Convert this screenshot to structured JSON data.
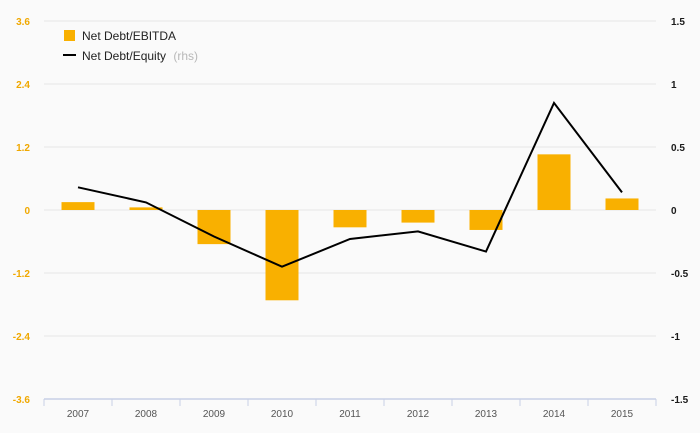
{
  "chart_data": {
    "type": "bar",
    "categories": [
      "2007",
      "2008",
      "2009",
      "2010",
      "2011",
      "2012",
      "2013",
      "2014",
      "2015"
    ],
    "series": [
      {
        "name": "Net Debt/EBITDA",
        "kind": "bar",
        "axis": "left",
        "color": "#f9b000",
        "values": [
          0.15,
          0.05,
          -0.65,
          -1.72,
          -0.33,
          -0.24,
          -0.38,
          1.06,
          0.22
        ]
      },
      {
        "name": "Net Debt/Equity",
        "axis_note": "(rhs)",
        "kind": "line",
        "axis": "right",
        "color": "#000000",
        "values": [
          0.18,
          0.06,
          -0.21,
          -0.45,
          -0.23,
          -0.17,
          -0.33,
          0.85,
          0.14
        ]
      }
    ],
    "y_left": {
      "ticks": [
        "3.6",
        "2.4",
        "1.2",
        "0",
        "-1.2",
        "-2.4",
        "-3.6"
      ],
      "lim": [
        -3.6,
        3.6
      ]
    },
    "y_right": {
      "ticks": [
        "1.5",
        "1",
        "0.5",
        "0",
        "-0.5",
        "-1",
        "-1.5"
      ],
      "lim": [
        -1.5,
        1.5
      ]
    },
    "grid": true,
    "legend_position": "top-left",
    "colors": {
      "left_axis_labels": "#f0a800",
      "right_axis_labels": "#1a1a1a",
      "gridline": "#e6e6e6"
    }
  }
}
